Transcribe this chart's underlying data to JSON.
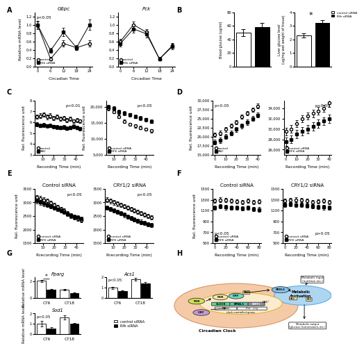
{
  "panel_A": {
    "G6pc": {
      "x": [
        0,
        6,
        12,
        18,
        24
      ],
      "control": [
        1.0,
        0.18,
        0.55,
        0.45,
        0.55
      ],
      "rfk": [
        1.0,
        0.38,
        0.82,
        0.45,
        1.0
      ],
      "control_err": [
        0.08,
        0.04,
        0.08,
        0.05,
        0.07
      ],
      "rfk_err": [
        0.1,
        0.06,
        0.1,
        0.06,
        0.12
      ],
      "pval": "p<0.05",
      "ylabel": "Relative mRNA level",
      "xlabel": "Circadian Time",
      "title": "G6pc",
      "ylim": [
        0,
        1.3
      ]
    },
    "Pck": {
      "x": [
        0,
        6,
        12,
        18,
        24
      ],
      "control": [
        0.6,
        1.0,
        0.82,
        0.18,
        0.5
      ],
      "rfk": [
        0.55,
        0.9,
        0.78,
        0.18,
        0.48
      ],
      "control_err": [
        0.06,
        0.08,
        0.07,
        0.04,
        0.06
      ],
      "rfk_err": [
        0.07,
        0.09,
        0.08,
        0.04,
        0.07
      ],
      "pval": "",
      "ylabel": "",
      "xlabel": "Circadian Time",
      "title": "Pck",
      "ylim": [
        0,
        1.3
      ]
    }
  },
  "panel_B": {
    "blood_glucose": {
      "control": 50,
      "rfk": 58,
      "control_err": 5,
      "rfk_err": 6,
      "ylabel": "Blood glucose (ug/ml)",
      "ylim": [
        0,
        80
      ]
    },
    "liver_glucose": {
      "control": 2.3,
      "rfk": 3.2,
      "control_err": 0.15,
      "rfk_err": 0.2,
      "ylabel": "Liver glucose level\n(ug/mg wet weight of tissue)",
      "ylim": [
        0,
        4
      ],
      "pval": "*"
    }
  },
  "panel_C": {
    "left": {
      "x": [
        5,
        8,
        11,
        14,
        17,
        20,
        23,
        26,
        29,
        32,
        35,
        38,
        41,
        44
      ],
      "control": [
        6500,
        6600,
        6700,
        6500,
        6600,
        6400,
        6500,
        6300,
        6400,
        6200,
        6300,
        6100,
        6200,
        6100
      ],
      "fad": [
        5800,
        5700,
        5750,
        5650,
        5700,
        5600,
        5550,
        5500,
        5550,
        5450,
        5500,
        5600,
        5500,
        5400
      ],
      "control_err": [
        200,
        220,
        200,
        220,
        200,
        200,
        200,
        190,
        200,
        190,
        200,
        180,
        190,
        180
      ],
      "fad_err": [
        180,
        180,
        180,
        180,
        180,
        170,
        170,
        170,
        170,
        170,
        170,
        180,
        170,
        170
      ],
      "pval": "p<0.01",
      "ylabel": "Rel. fluorescence unit",
      "xlabel": "Recording Time (min)",
      "ylim": [
        3000,
        8000
      ]
    },
    "right": {
      "x": [
        5,
        10,
        15,
        20,
        25,
        30,
        35,
        40,
        45
      ],
      "control": [
        19500,
        18500,
        17000,
        15500,
        14500,
        14000,
        13500,
        13000,
        12500
      ],
      "rfk": [
        20000,
        19500,
        18500,
        18000,
        17500,
        17000,
        16500,
        16000,
        15500
      ],
      "control_err": [
        500,
        500,
        500,
        500,
        500,
        500,
        500,
        500,
        500
      ],
      "rfk_err": [
        600,
        600,
        600,
        600,
        600,
        600,
        600,
        600,
        600
      ],
      "pval": "p<0.05",
      "ylabel": "Rel. fluorescence unit",
      "xlabel": "Recording Time (min)",
      "ylim": [
        5000,
        22000
      ]
    }
  },
  "panel_D": {
    "left": {
      "x": [
        0,
        5,
        10,
        15,
        20,
        25,
        30,
        35,
        40
      ],
      "control": [
        20500,
        21000,
        22000,
        23000,
        24000,
        25500,
        26500,
        27500,
        28500
      ],
      "fad": [
        18500,
        19000,
        20000,
        21000,
        22000,
        23000,
        24000,
        25000,
        26000
      ],
      "control_err": [
        600,
        600,
        600,
        600,
        600,
        600,
        600,
        600,
        600
      ],
      "fad_err": [
        700,
        700,
        700,
        700,
        700,
        700,
        700,
        700,
        700
      ],
      "pval": "p<0.05",
      "ylabel": "Rel. fluorescence unit",
      "xlabel": "Recording Time (min)",
      "ylim": [
        15000,
        30000
      ]
    },
    "right": {
      "x": [
        0,
        5,
        10,
        15,
        20,
        25,
        30,
        35,
        40
      ],
      "control": [
        29500,
        30000,
        31000,
        32000,
        32500,
        33000,
        33500,
        34000,
        35000
      ],
      "rfk": [
        27500,
        28000,
        29000,
        29500,
        30000,
        30500,
        31000,
        31500,
        32000
      ],
      "control_err": [
        700,
        700,
        700,
        700,
        700,
        700,
        700,
        700,
        700
      ],
      "rfk_err": [
        800,
        800,
        800,
        800,
        800,
        800,
        800,
        800,
        800
      ],
      "pval": "p<0.05",
      "ylabel": "",
      "xlabel": "Recording Time (min)",
      "ylim": [
        25000,
        35500
      ]
    }
  },
  "panel_E": {
    "left": {
      "title": "Control siRNA",
      "x": [
        5,
        8,
        11,
        14,
        17,
        20,
        23,
        26,
        29,
        32,
        35,
        38,
        41,
        44
      ],
      "control": [
        3200,
        3150,
        3100,
        3050,
        2980,
        2900,
        2820,
        2750,
        2700,
        2600,
        2500,
        2450,
        2400,
        2350
      ],
      "rfk": [
        3050,
        3000,
        2950,
        2900,
        2850,
        2800,
        2750,
        2700,
        2650,
        2580,
        2530,
        2480,
        2440,
        2400
      ],
      "control_err": [
        80,
        80,
        80,
        80,
        80,
        80,
        80,
        80,
        80,
        80,
        80,
        80,
        80,
        80
      ],
      "rfk_err": [
        80,
        80,
        80,
        80,
        80,
        80,
        80,
        80,
        80,
        80,
        80,
        80,
        80,
        80
      ],
      "pval": "p<0.05",
      "ylabel": "Rel. fluorescence unit",
      "xlabel": "Rrecording Time (min)",
      "ylim": [
        1500,
        3500
      ]
    },
    "right": {
      "title": "CRY1/2 siRNA",
      "x": [
        5,
        8,
        11,
        14,
        17,
        20,
        23,
        26,
        29,
        32,
        35,
        38,
        41,
        44
      ],
      "control": [
        3100,
        3050,
        3000,
        2950,
        2900,
        2850,
        2800,
        2750,
        2700,
        2650,
        2600,
        2550,
        2500,
        2450
      ],
      "rfk": [
        2800,
        2750,
        2700,
        2650,
        2600,
        2540,
        2480,
        2420,
        2370,
        2320,
        2280,
        2240,
        2200,
        2170
      ],
      "control_err": [
        80,
        80,
        80,
        80,
        80,
        80,
        80,
        80,
        80,
        80,
        80,
        80,
        80,
        80
      ],
      "rfk_err": [
        80,
        80,
        80,
        80,
        80,
        80,
        80,
        80,
        80,
        80,
        80,
        80,
        80,
        80
      ],
      "pval": "p<0.05",
      "ylabel": "",
      "xlabel": "Rrecording Time (min)",
      "ylim": [
        1500,
        3500
      ]
    }
  },
  "panel_F": {
    "left": {
      "title": "Control siRNA",
      "x": [
        0,
        10,
        20,
        30,
        40,
        50,
        60,
        70,
        80
      ],
      "control": [
        1280,
        1300,
        1290,
        1280,
        1270,
        1260,
        1280,
        1260,
        1270
      ],
      "rfk": [
        1150,
        1180,
        1160,
        1150,
        1150,
        1140,
        1150,
        1130,
        1120
      ],
      "control_err": [
        40,
        40,
        40,
        40,
        40,
        40,
        40,
        40,
        40
      ],
      "rfk_err": [
        40,
        40,
        40,
        40,
        40,
        40,
        40,
        40,
        40
      ],
      "pval": "p<0.05",
      "ylabel": "Rel. fluorescence unit",
      "xlabel": "Recording Time (min)",
      "ylim": [
        500,
        1500
      ]
    },
    "right": {
      "title": "CRY1/2 siRNA",
      "x": [
        0,
        10,
        20,
        30,
        40,
        50,
        60,
        70,
        80
      ],
      "control": [
        1280,
        1290,
        1300,
        1290,
        1280,
        1260,
        1270,
        1280,
        1260
      ],
      "rfk": [
        1200,
        1220,
        1210,
        1200,
        1190,
        1180,
        1170,
        1160,
        1150
      ],
      "control_err": [
        40,
        40,
        40,
        40,
        40,
        40,
        40,
        40,
        40
      ],
      "rfk_err": [
        40,
        40,
        40,
        40,
        40,
        40,
        40,
        40,
        40
      ],
      "pval": "p>0.05",
      "ylabel": "",
      "xlabel": "Recording Time (min)",
      "ylim": [
        500,
        1500
      ]
    }
  },
  "panel_G": {
    "Pparg": {
      "CT6_ctrl": 2.05,
      "CT6_rfk": 1.0,
      "CT18_ctrl": 1.0,
      "CT18_rfk": 0.6,
      "CT6_ctrl_err": 0.1,
      "CT6_rfk_err": 0.1,
      "CT18_ctrl_err": 0.1,
      "CT18_rfk_err": 0.08,
      "pval": "*",
      "title": "Pparg",
      "ylim": [
        0,
        2.5
      ]
    },
    "Acs1": {
      "CT6_ctrl": 1.0,
      "CT6_rfk": 0.65,
      "CT18_ctrl": 1.8,
      "CT18_rfk": 1.4,
      "CT6_ctrl_err": 0.1,
      "CT6_rfk_err": 0.08,
      "CT18_ctrl_err": 0.15,
      "CT18_rfk_err": 0.12,
      "pval": "p<0.05",
      "title": "Acs1",
      "ylim": [
        0,
        2.0
      ]
    },
    "Sod1": {
      "CT6_ctrl": 1.0,
      "CT6_rfk": 0.55,
      "CT18_ctrl": 1.6,
      "CT18_rfk": 1.0,
      "CT6_ctrl_err": 0.25,
      "CT6_rfk_err": 0.12,
      "CT18_ctrl_err": 0.2,
      "CT18_rfk_err": 0.1,
      "pval": "p<0.05",
      "title": "Sod1",
      "ylim": [
        0,
        2.0
      ]
    }
  }
}
